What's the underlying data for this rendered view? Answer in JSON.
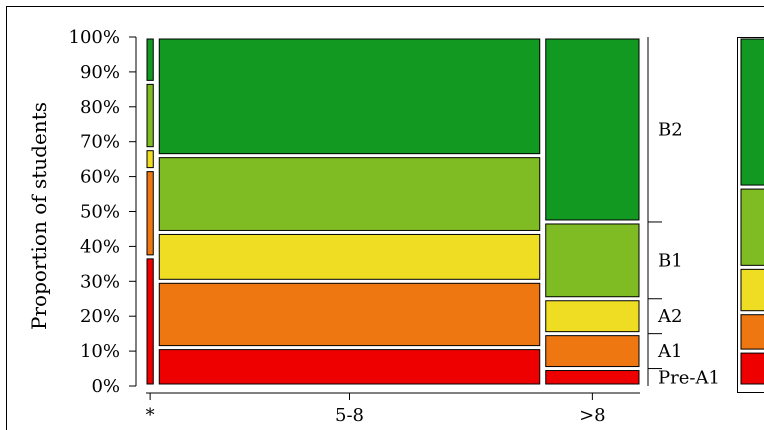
{
  "colors": {
    "Pre-A1": "#ee0000",
    "A1": "#ee7711",
    "A2": "#eedd22",
    "B1": "#7fbb22",
    "B2": "#119922",
    "border": "#000000"
  },
  "chart_data": {
    "type": "mosaic",
    "title": "",
    "xlabel": "",
    "ylabel": "Proportion of students",
    "ylim": [
      0,
      100
    ],
    "y_ticks": [
      "0%",
      "10%",
      "20%",
      "30%",
      "40%",
      "50%",
      "60%",
      "70%",
      "80%",
      "90%",
      "100%"
    ],
    "levels": [
      "Pre-A1",
      "A1",
      "A2",
      "B1",
      "B2"
    ],
    "categories": [
      {
        "label": "*",
        "width_share": 0.017,
        "values": [
          37,
          25,
          6,
          19,
          13
        ]
      },
      {
        "label": "5-8",
        "width_share": 0.787,
        "values": [
          11,
          19,
          14,
          22,
          34
        ]
      },
      {
        "label": ">8",
        "width_share": 0.196,
        "values": [
          5,
          10,
          10,
          22,
          53
        ]
      }
    ],
    "right_labels": [
      "Pre-A1",
      "A1",
      "A2",
      "B1",
      "B2"
    ],
    "legend_placement": "right"
  }
}
